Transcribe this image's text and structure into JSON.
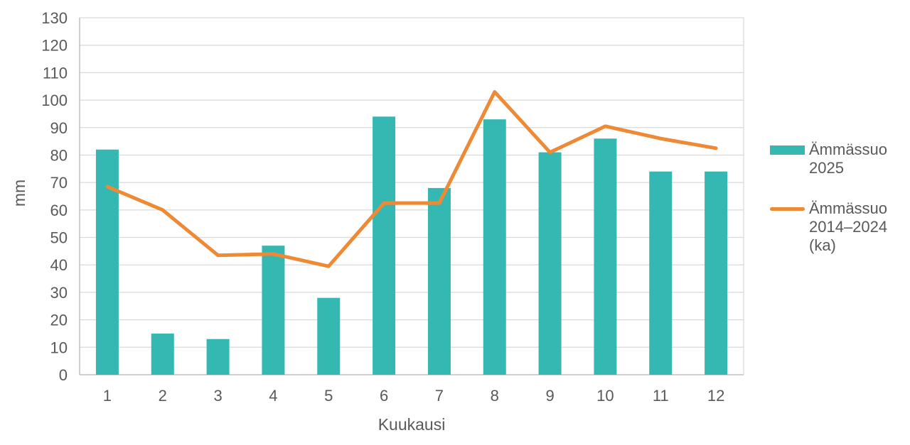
{
  "chart_data": {
    "type": "bar",
    "title": "",
    "categories": [
      "1",
      "2",
      "3",
      "4",
      "5",
      "6",
      "7",
      "8",
      "9",
      "10",
      "11",
      "12"
    ],
    "series": [
      {
        "name": "Ämmässuo 2025",
        "kind": "bar",
        "color": "#35B8B1",
        "values": [
          82,
          15,
          13,
          47,
          28,
          94,
          68,
          93,
          81,
          86,
          74,
          74
        ]
      },
      {
        "name": "Ämmässuo 2014–2024 (ka)",
        "kind": "line",
        "color": "#EE8A35",
        "values": [
          68.5,
          60,
          43.5,
          44,
          39.5,
          62.5,
          62.5,
          103,
          81,
          90.5,
          86,
          82.5
        ]
      }
    ],
    "xlabel": "Kuukausi",
    "ylabel": "mm",
    "ylim": [
      0,
      130
    ],
    "ytick_step": 10,
    "y_ticks": [
      "0",
      "10",
      "20",
      "30",
      "40",
      "50",
      "60",
      "70",
      "80",
      "90",
      "100",
      "110",
      "120",
      "130"
    ],
    "grid": true,
    "legend_position": "right"
  },
  "style": {
    "background": "#FFFFFF",
    "grid_color": "#D9D9D9",
    "axis_color": "#BFBFBF",
    "text_color": "#595959"
  }
}
